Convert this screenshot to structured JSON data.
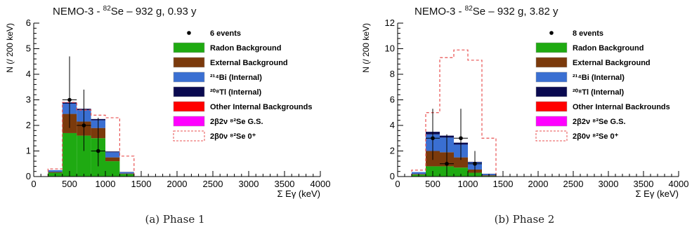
{
  "captions": {
    "a": {
      "tag": "(a)",
      "text": "Phase 1"
    },
    "b": {
      "tag": "(b)",
      "text": "Phase 2"
    }
  },
  "colors": {
    "radon": "#1faa12",
    "external": "#7b3a0c",
    "bi214": "#3a6fd2",
    "tl208": "#0a0a50",
    "other": "#ff0000",
    "g2b2n": "#ff00ff",
    "g0n": "#e85050",
    "data": "#000000"
  },
  "chart_data": [
    {
      "type": "bar",
      "stacked": true,
      "title": "NEMO-3 - 82Se – 932 g, 0.93 y",
      "title_parts": {
        "pre": "NEMO-3 - ",
        "sup": "82",
        "post": "Se – 932 g, 0.93 y"
      },
      "xlabel": "Σ Eγ (keV)",
      "ylabel": "N (/ 200 keV)",
      "xlim": [
        0,
        4000
      ],
      "ylim": [
        0,
        6
      ],
      "xticks": [
        0,
        500,
        1000,
        1500,
        2000,
        2500,
        3000,
        3500,
        4000
      ],
      "yticks": [
        0,
        1,
        2,
        3,
        4,
        5,
        6
      ],
      "bins": [
        [
          200,
          400
        ],
        [
          400,
          600
        ],
        [
          600,
          800
        ],
        [
          800,
          1000
        ],
        [
          1000,
          1200
        ],
        [
          1200,
          1400
        ]
      ],
      "legend": {
        "data": "6 events",
        "radon": "Radon Background",
        "external": "External Background",
        "bi214": "²¹⁴Bi (Internal)",
        "tl208": "²⁰⁸Tl (Internal)",
        "other": "Other Internal Backgrounds",
        "g2b2n": "2β2ν ⁸²Se G.S.",
        "g0n": "2β0ν ⁸²Se 0⁺"
      },
      "series": [
        {
          "key": "radon",
          "values": [
            0.15,
            1.7,
            1.6,
            1.5,
            0.6,
            0.1
          ]
        },
        {
          "key": "external",
          "values": [
            0.03,
            0.75,
            0.55,
            0.4,
            0.15,
            0.02
          ]
        },
        {
          "key": "bi214",
          "values": [
            0.07,
            0.4,
            0.45,
            0.3,
            0.2,
            0.05
          ]
        },
        {
          "key": "tl208",
          "values": [
            0.0,
            0.05,
            0.05,
            0.05,
            0.03,
            0.01
          ]
        }
      ],
      "signal_0v": [
        0.3,
        2.9,
        2.6,
        2.4,
        2.3,
        0.8
      ],
      "data_points": [
        {
          "x": 500,
          "y": 3,
          "err": [
            1.1,
            1.7
          ]
        },
        {
          "x": 700,
          "y": 2,
          "err": [
            1.0,
            1.4
          ]
        },
        {
          "x": 900,
          "y": 1,
          "err": [
            0.6,
            1.3
          ]
        }
      ]
    },
    {
      "type": "bar",
      "stacked": true,
      "title": "NEMO-3 - 82Se – 932 g, 3.82 y",
      "title_parts": {
        "pre": "NEMO-3 - ",
        "sup": "82",
        "post": "Se – 932 g, 3.82 y"
      },
      "xlabel": "Σ Eγ (keV)",
      "ylabel": "N (/ 200 keV)",
      "xlim": [
        0,
        4000
      ],
      "ylim": [
        0,
        12
      ],
      "xticks": [
        0,
        500,
        1000,
        1500,
        2000,
        2500,
        3000,
        3500,
        4000
      ],
      "yticks": [
        0,
        2,
        4,
        6,
        8,
        10,
        12
      ],
      "bins": [
        [
          200,
          400
        ],
        [
          400,
          600
        ],
        [
          600,
          800
        ],
        [
          800,
          1000
        ],
        [
          1000,
          1200
        ],
        [
          1200,
          1400
        ]
      ],
      "legend": {
        "data": "8 events",
        "radon": "Radon Background",
        "external": "External Background",
        "bi214": "²¹⁴Bi (Internal)",
        "tl208": "²⁰⁸Tl (Internal)",
        "other": "Other Internal Backrounds",
        "g2b2n": "2β2ν ⁸²Se G.S.",
        "g0n": "2β0ν ⁸²Se 0⁺"
      },
      "series": [
        {
          "key": "radon",
          "values": [
            0.15,
            0.8,
            0.8,
            0.7,
            0.3,
            0.05
          ]
        },
        {
          "key": "external",
          "values": [
            0.05,
            1.2,
            1.1,
            0.8,
            0.25,
            0.05
          ]
        },
        {
          "key": "bi214",
          "values": [
            0.15,
            1.3,
            1.15,
            1.0,
            0.55,
            0.1
          ]
        },
        {
          "key": "tl208",
          "values": [
            0.0,
            0.2,
            0.15,
            0.15,
            0.05,
            0.02
          ]
        }
      ],
      "signal_0v": [
        0.5,
        5.0,
        9.3,
        9.9,
        9.1,
        3.0
      ],
      "data_points": [
        {
          "x": 500,
          "y": 3,
          "err": [
            1.7,
            2.3
          ]
        },
        {
          "x": 700,
          "y": 1,
          "err": [
            0.8,
            2.3
          ]
        },
        {
          "x": 900,
          "y": 3,
          "err": [
            1.7,
            2.3
          ]
        },
        {
          "x": 1100,
          "y": 1,
          "err": [
            0.8,
            1.0
          ]
        }
      ]
    }
  ]
}
